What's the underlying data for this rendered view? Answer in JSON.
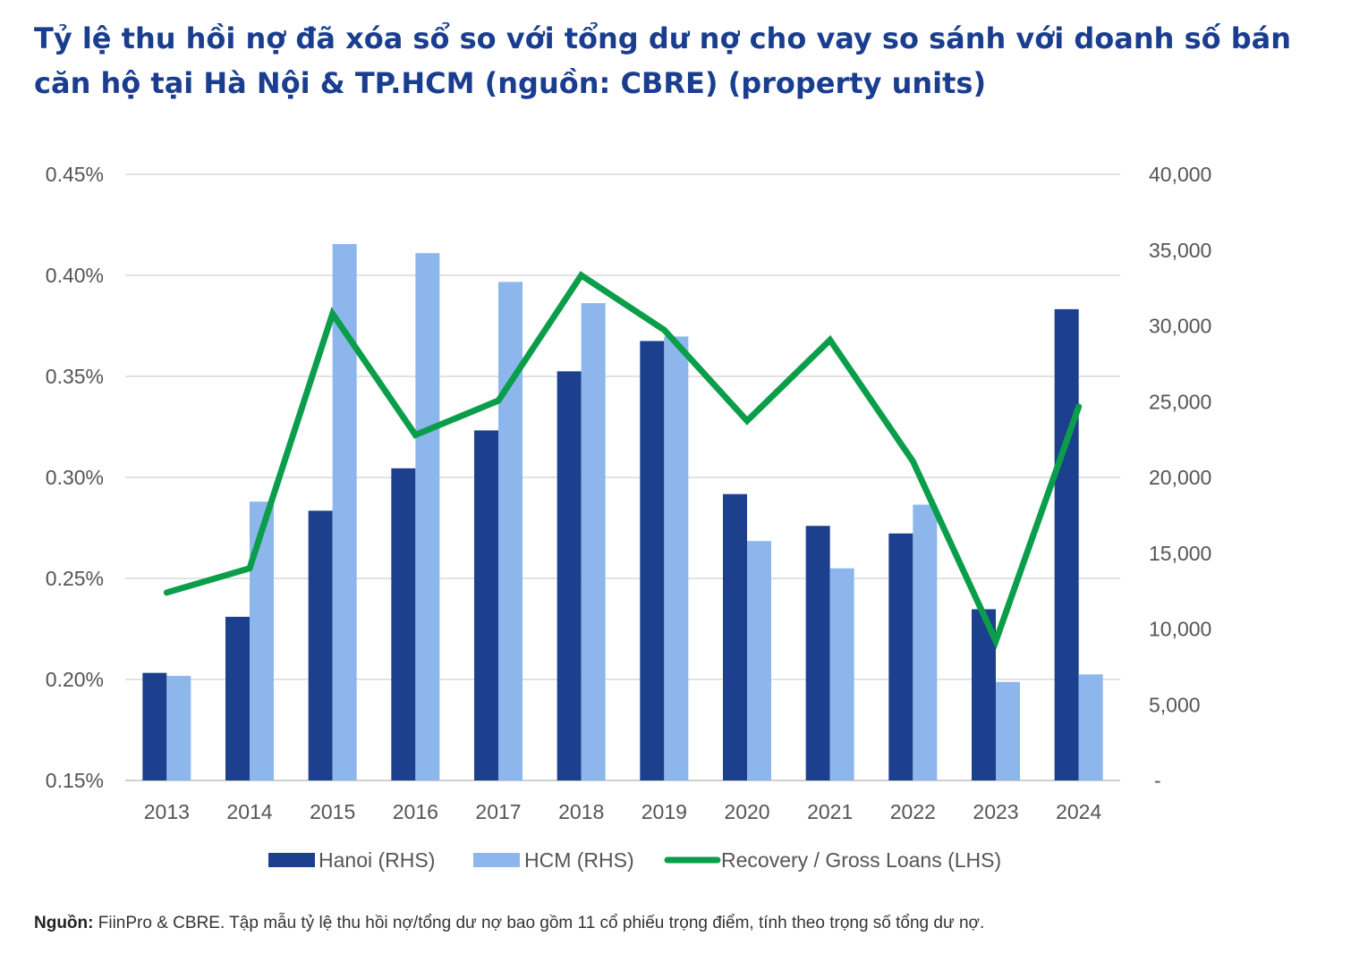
{
  "title": "Tỷ lệ thu hồi nợ đã xóa sổ so với tổng dư nợ cho vay so sánh với doanh số bán căn hộ tại Hà Nội & TP.HCM (nguồn: CBRE) (property units)",
  "source": {
    "label": "Nguồn:",
    "text": " FiinPro & CBRE. Tập mẫu tỷ lệ thu hồi nợ/tổng dư nợ bao gồm 11 cổ phiếu trọng điểm, tính theo trọng số tổng dư nợ."
  },
  "colors": {
    "hanoi": "#1c3f8e",
    "hcm": "#8db7ec",
    "recovery": "#0a9e4a",
    "grid": "#d9d9d9"
  },
  "chart_data": {
    "type": "bar+line",
    "title": "Tỷ lệ thu hồi nợ đã xóa sổ so với tổng dư nợ cho vay so sánh với doanh số bán căn hộ tại Hà Nội & TP.HCM (nguồn: CBRE) (property units)",
    "categories": [
      "2013",
      "2014",
      "2015",
      "2016",
      "2017",
      "2018",
      "2019",
      "2020",
      "2021",
      "2022",
      "2023",
      "2024"
    ],
    "left_axis": {
      "min": 0.0015,
      "max": 0.0045,
      "step": 0.0005,
      "tick_labels": [
        "0.15%",
        "0.20%",
        "0.25%",
        "0.30%",
        "0.35%",
        "0.40%",
        "0.45%"
      ]
    },
    "right_axis": {
      "min": 0,
      "max": 40000,
      "step": 5000,
      "tick_labels": [
        "-",
        "5,000",
        "10,000",
        "15,000",
        "20,000",
        "25,000",
        "30,000",
        "35,000",
        "40,000"
      ]
    },
    "grid": true,
    "legend_position": "bottom",
    "series": [
      {
        "name": "Hanoi (RHS)",
        "type": "bar",
        "axis": "right",
        "values": [
          7100,
          10800,
          17800,
          20600,
          23100,
          27000,
          29000,
          18900,
          16800,
          16300,
          11300,
          31100
        ]
      },
      {
        "name": "HCM (RHS)",
        "type": "bar",
        "axis": "right",
        "values": [
          6900,
          18400,
          35400,
          34800,
          32900,
          31500,
          29300,
          15800,
          14000,
          18200,
          6500,
          7000
        ]
      },
      {
        "name": "Recovery / Gross Loans (LHS)",
        "type": "line",
        "axis": "left",
        "values": [
          0.00243,
          0.00255,
          0.00381,
          0.00321,
          0.00338,
          0.004,
          0.00373,
          0.00328,
          0.00368,
          0.00308,
          0.00219,
          0.00335
        ]
      }
    ]
  }
}
